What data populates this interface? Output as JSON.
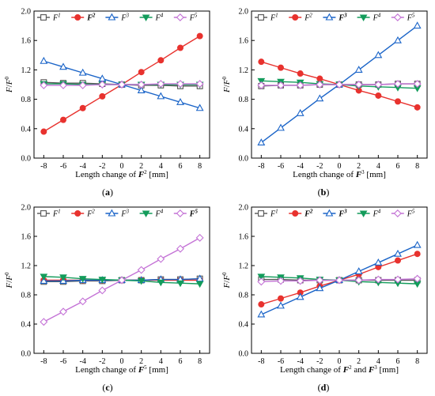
{
  "chart_data": [
    {
      "type": "line",
      "label": "(a)",
      "ylabel": "F/F⁰",
      "xlabel": "Length change of F² [mm]",
      "xticks": [
        -8,
        -6,
        -4,
        -2,
        0,
        2,
        4,
        6,
        8
      ],
      "yticks": [
        0.0,
        0.4,
        0.8,
        1.2,
        1.6,
        2.0
      ],
      "xlim": [
        -9,
        9
      ],
      "ylim": [
        0,
        2
      ],
      "x": [
        -8,
        -6,
        -4,
        -2,
        0,
        2,
        4,
        6,
        8
      ],
      "series": [
        {
          "name": "F¹",
          "bold": false,
          "color": "#555555",
          "marker": "square",
          "values": [
            1.03,
            1.02,
            1.02,
            1.01,
            1.0,
            0.99,
            0.99,
            0.98,
            0.98
          ]
        },
        {
          "name": "F²",
          "bold": true,
          "color": "#e8322e",
          "marker": "circle",
          "values": [
            0.36,
            0.52,
            0.68,
            0.84,
            1.0,
            1.17,
            1.33,
            1.5,
            1.66
          ]
        },
        {
          "name": "F³",
          "bold": false,
          "color": "#1a64c8",
          "marker": "triangle",
          "values": [
            1.32,
            1.24,
            1.16,
            1.08,
            1.0,
            0.92,
            0.84,
            0.76,
            0.68
          ]
        },
        {
          "name": "F⁴",
          "bold": false,
          "color": "#139c5b",
          "marker": "tridown",
          "values": [
            1.01,
            1.01,
            1.0,
            1.0,
            1.0,
            1.0,
            1.0,
            1.0,
            1.0
          ]
        },
        {
          "name": "F⁵",
          "bold": false,
          "color": "#c473d6",
          "marker": "diamond",
          "values": [
            0.99,
            0.99,
            0.99,
            1.0,
            1.0,
            1.0,
            1.01,
            1.01,
            1.01
          ]
        }
      ]
    },
    {
      "type": "line",
      "label": "(b)",
      "ylabel": "F/F⁰",
      "xlabel": "Length change of F³ [mm]",
      "xticks": [
        -8,
        -6,
        -4,
        -2,
        0,
        2,
        4,
        6,
        8
      ],
      "yticks": [
        0.0,
        0.4,
        0.8,
        1.2,
        1.6,
        2.0
      ],
      "xlim": [
        -9,
        9
      ],
      "ylim": [
        0,
        2
      ],
      "x": [
        -8,
        -6,
        -4,
        -2,
        0,
        2,
        4,
        6,
        8
      ],
      "series": [
        {
          "name": "F¹",
          "bold": false,
          "color": "#555555",
          "marker": "square",
          "values": [
            0.98,
            0.99,
            0.99,
            1.0,
            1.0,
            1.0,
            1.0,
            1.01,
            1.01
          ]
        },
        {
          "name": "F²",
          "bold": false,
          "color": "#e8322e",
          "marker": "circle",
          "values": [
            1.31,
            1.23,
            1.15,
            1.08,
            1.0,
            0.92,
            0.85,
            0.77,
            0.69
          ]
        },
        {
          "name": "F³",
          "bold": true,
          "color": "#1a64c8",
          "marker": "triangle",
          "values": [
            0.21,
            0.41,
            0.61,
            0.81,
            1.0,
            1.2,
            1.4,
            1.6,
            1.8
          ]
        },
        {
          "name": "F⁴",
          "bold": false,
          "color": "#139c5b",
          "marker": "tridown",
          "values": [
            1.05,
            1.04,
            1.03,
            1.01,
            1.0,
            0.98,
            0.97,
            0.96,
            0.95
          ]
        },
        {
          "name": "F⁵",
          "bold": false,
          "color": "#c473d6",
          "marker": "diamond",
          "values": [
            0.99,
            0.99,
            0.99,
            1.0,
            1.0,
            1.0,
            1.0,
            1.01,
            1.01
          ]
        }
      ]
    },
    {
      "type": "line",
      "label": "(c)",
      "ylabel": "F/F⁰",
      "xlabel": "Length change of F⁵ [mm]",
      "xticks": [
        -8,
        -6,
        -4,
        -2,
        0,
        2,
        4,
        6,
        8
      ],
      "yticks": [
        0.0,
        0.4,
        0.8,
        1.2,
        1.6,
        2.0
      ],
      "xlim": [
        -9,
        9
      ],
      "ylim": [
        0,
        2
      ],
      "x": [
        -8,
        -6,
        -4,
        -2,
        0,
        2,
        4,
        6,
        8
      ],
      "series": [
        {
          "name": "F¹",
          "bold": false,
          "color": "#555555",
          "marker": "square",
          "values": [
            0.98,
            0.98,
            0.99,
            0.99,
            1.0,
            1.0,
            1.01,
            1.01,
            1.02
          ]
        },
        {
          "name": "F²",
          "bold": false,
          "color": "#e8322e",
          "marker": "circle",
          "values": [
            1.0,
            1.0,
            1.0,
            1.0,
            1.0,
            1.0,
            1.0,
            1.0,
            1.0
          ]
        },
        {
          "name": "F³",
          "bold": false,
          "color": "#1a64c8",
          "marker": "triangle",
          "values": [
            0.99,
            0.99,
            1.0,
            1.0,
            1.0,
            1.0,
            1.01,
            1.01,
            1.02
          ]
        },
        {
          "name": "F⁴",
          "bold": false,
          "color": "#139c5b",
          "marker": "tridown",
          "values": [
            1.05,
            1.04,
            1.02,
            1.01,
            1.0,
            0.99,
            0.97,
            0.96,
            0.95
          ]
        },
        {
          "name": "F⁵",
          "bold": true,
          "color": "#c473d6",
          "marker": "diamond",
          "values": [
            0.43,
            0.57,
            0.71,
            0.86,
            1.0,
            1.14,
            1.29,
            1.43,
            1.58
          ]
        }
      ]
    },
    {
      "type": "line",
      "label": "(d)",
      "ylabel": "F/F⁰",
      "xlabel": "Length change of F² and F³ [mm]",
      "xticks": [
        -8,
        -6,
        -4,
        -2,
        0,
        2,
        4,
        6,
        8
      ],
      "yticks": [
        0.0,
        0.4,
        0.8,
        1.2,
        1.6,
        2.0
      ],
      "xlim": [
        -9,
        9
      ],
      "ylim": [
        0,
        2
      ],
      "x": [
        -8,
        -6,
        -4,
        -2,
        0,
        2,
        4,
        6,
        8
      ],
      "series": [
        {
          "name": "F¹",
          "bold": false,
          "color": "#555555",
          "marker": "square",
          "values": [
            1.01,
            1.01,
            1.0,
            1.0,
            1.0,
            1.0,
            1.0,
            1.0,
            1.0
          ]
        },
        {
          "name": "F²",
          "bold": true,
          "color": "#e8322e",
          "marker": "circle",
          "values": [
            0.67,
            0.75,
            0.83,
            0.92,
            1.0,
            1.08,
            1.18,
            1.27,
            1.36
          ]
        },
        {
          "name": "F³",
          "bold": true,
          "color": "#1a64c8",
          "marker": "triangle",
          "values": [
            0.53,
            0.65,
            0.77,
            0.89,
            1.0,
            1.12,
            1.24,
            1.36,
            1.48
          ]
        },
        {
          "name": "F⁴",
          "bold": false,
          "color": "#139c5b",
          "marker": "tridown",
          "values": [
            1.05,
            1.04,
            1.03,
            1.01,
            1.0,
            0.98,
            0.97,
            0.96,
            0.95
          ]
        },
        {
          "name": "F⁵",
          "bold": false,
          "color": "#c473d6",
          "marker": "diamond",
          "values": [
            0.98,
            0.99,
            0.99,
            1.0,
            1.0,
            1.0,
            1.01,
            1.01,
            1.02
          ]
        }
      ]
    }
  ]
}
